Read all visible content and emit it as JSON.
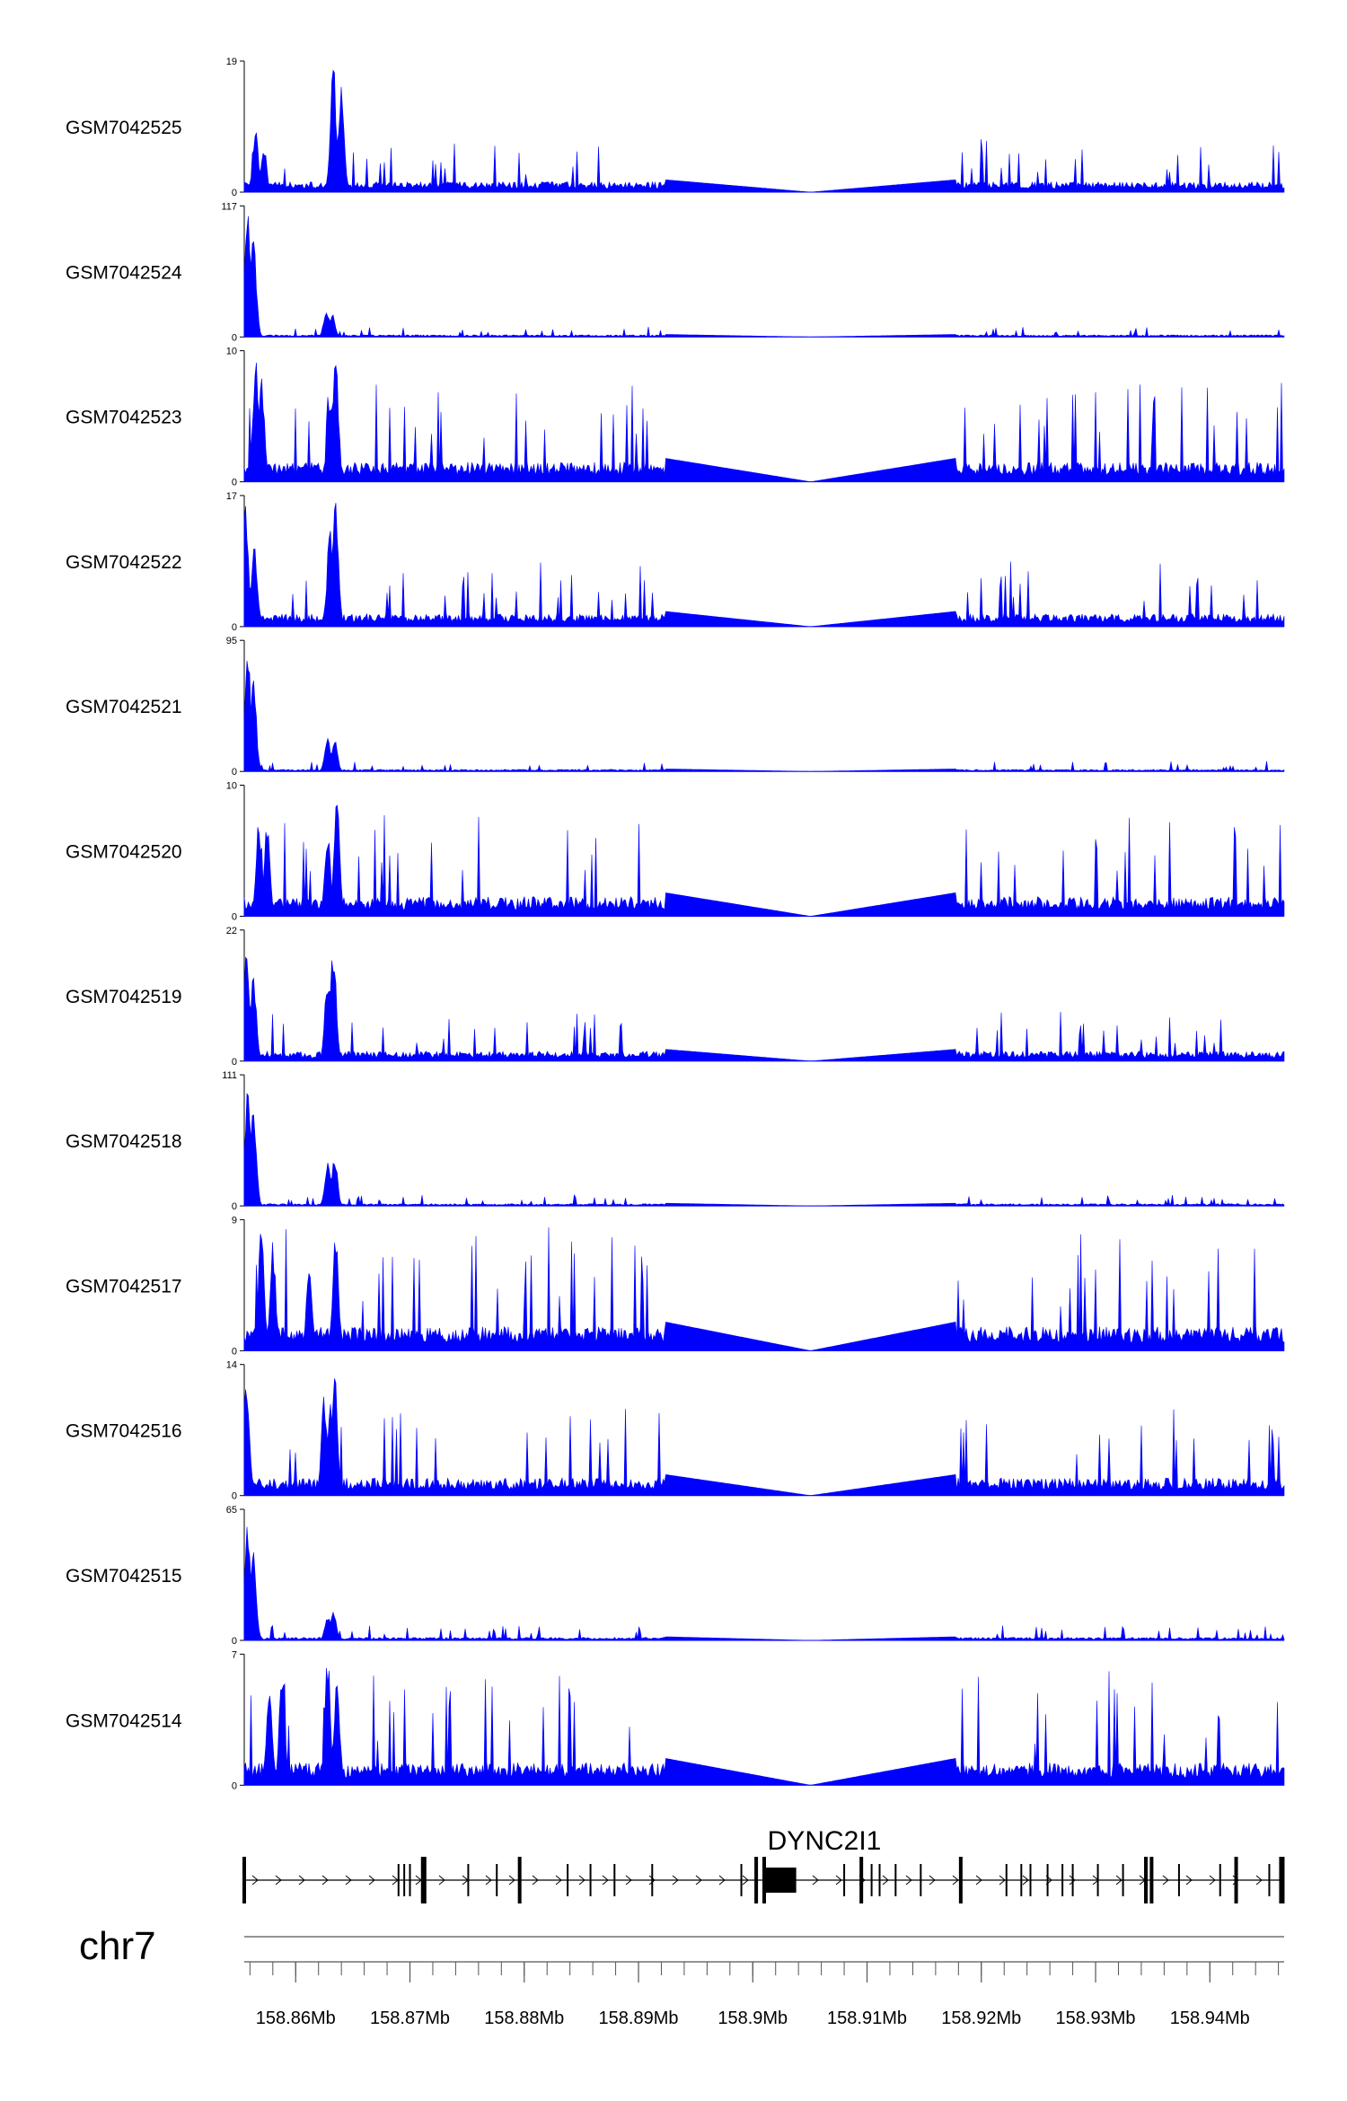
{
  "chart_data": {
    "type": "area",
    "chromosome": "chr7",
    "colors": {
      "signal": "#0000ff",
      "axis": "#000000",
      "gene": "#000000",
      "ideogram": "#555555"
    },
    "region": [
      158.8555,
      158.9465
    ],
    "gap": [
      158.8923,
      158.9178
    ],
    "tracks": [
      {
        "name": "GSM7042525",
        "max": "19",
        "min": "0",
        "ymax": 19,
        "peaks": [
          [
            158.8565,
            9
          ],
          [
            158.8572,
            7
          ],
          [
            158.8633,
            19
          ],
          [
            158.864,
            16
          ]
        ],
        "base": 2.0
      },
      {
        "name": "GSM7042524",
        "max": "117",
        "min": "0",
        "ymax": 117,
        "peaks": [
          [
            158.8558,
            111
          ],
          [
            158.8563,
            90
          ],
          [
            158.8627,
            25
          ],
          [
            158.8632,
            22
          ]
        ],
        "base": 2.5
      },
      {
        "name": "GSM7042523",
        "max": "10",
        "min": "0",
        "ymax": 10,
        "peaks": [
          [
            158.8565,
            9.5
          ],
          [
            158.857,
            8.5
          ],
          [
            158.863,
            7
          ],
          [
            158.8635,
            10
          ]
        ],
        "base": 2.0
      },
      {
        "name": "GSM7042522",
        "max": "17",
        "min": "0",
        "ymax": 17,
        "peaks": [
          [
            158.8556,
            16
          ],
          [
            158.8564,
            11
          ],
          [
            158.863,
            13
          ],
          [
            158.8635,
            17
          ]
        ],
        "base": 2.2
      },
      {
        "name": "GSM7042521",
        "max": "95",
        "min": "0",
        "ymax": 95,
        "peaks": [
          [
            158.8558,
            92
          ],
          [
            158.8563,
            70
          ],
          [
            158.8628,
            24
          ],
          [
            158.8634,
            25
          ]
        ],
        "base": 2.0
      },
      {
        "name": "GSM7042520",
        "max": "10",
        "min": "0",
        "ymax": 10,
        "peaks": [
          [
            158.8568,
            7
          ],
          [
            158.8575,
            7.5
          ],
          [
            158.8628,
            6.5
          ],
          [
            158.8636,
            10
          ]
        ],
        "base": 2.0
      },
      {
        "name": "GSM7042519",
        "max": "22",
        "min": "0",
        "ymax": 22,
        "peaks": [
          [
            158.8557,
            21
          ],
          [
            158.8563,
            15
          ],
          [
            158.8628,
            15
          ],
          [
            158.8633,
            20
          ]
        ],
        "base": 2.2
      },
      {
        "name": "GSM7042518",
        "max": "111",
        "min": "0",
        "ymax": 111,
        "peaks": [
          [
            158.8558,
            108
          ],
          [
            158.8563,
            85
          ],
          [
            158.8628,
            40
          ],
          [
            158.8634,
            44
          ]
        ],
        "base": 2.5
      },
      {
        "name": "GSM7042517",
        "max": "9",
        "min": "0",
        "ymax": 9,
        "peaks": [
          [
            158.857,
            9
          ],
          [
            158.858,
            7.5
          ],
          [
            158.8612,
            6.2
          ],
          [
            158.8635,
            8.5
          ]
        ],
        "base": 2.2
      },
      {
        "name": "GSM7042516",
        "max": "14",
        "min": "0",
        "ymax": 14,
        "peaks": [
          [
            158.8557,
            13
          ],
          [
            158.8625,
            11
          ],
          [
            158.863,
            10
          ],
          [
            158.8634,
            14
          ]
        ],
        "base": 2.5
      },
      {
        "name": "GSM7042515",
        "max": "65",
        "min": "0",
        "ymax": 65,
        "peaks": [
          [
            158.8558,
            62
          ],
          [
            158.8563,
            48
          ],
          [
            158.8628,
            12
          ],
          [
            158.8633,
            16
          ]
        ],
        "base": 2.0
      },
      {
        "name": "GSM7042514",
        "max": "7",
        "min": "0",
        "ymax": 7,
        "peaks": [
          [
            158.8577,
            5.5
          ],
          [
            158.8588,
            6.2
          ],
          [
            158.8628,
            7
          ],
          [
            158.8636,
            6
          ]
        ],
        "base": 1.6
      }
    ],
    "gene": {
      "name": "DYNC2I1",
      "start": 158.8555,
      "end": 158.9465,
      "exons": [
        {
          "pos": 158.8555,
          "tall": true
        },
        {
          "pos": 158.869
        },
        {
          "pos": 158.8695
        },
        {
          "pos": 158.87
        },
        {
          "pos": 158.8712,
          "tall": true,
          "wide": true
        },
        {
          "pos": 158.8751
        },
        {
          "pos": 158.8776
        },
        {
          "pos": 158.8796,
          "tall": true
        },
        {
          "pos": 158.8838
        },
        {
          "pos": 158.8858
        },
        {
          "pos": 158.8879
        },
        {
          "pos": 158.8912
        },
        {
          "pos": 158.899
        },
        {
          "pos": 158.9003,
          "tall": true
        },
        {
          "pos": 158.901,
          "tall": true,
          "cds_end": 158.9038
        },
        {
          "pos": 158.908
        },
        {
          "pos": 158.9095,
          "tall": true
        },
        {
          "pos": 158.9104
        },
        {
          "pos": 158.9111
        },
        {
          "pos": 158.9125
        },
        {
          "pos": 158.9147
        },
        {
          "pos": 158.9182,
          "tall": true
        },
        {
          "pos": 158.9222
        },
        {
          "pos": 158.9235
        },
        {
          "pos": 158.9243
        },
        {
          "pos": 158.9258
        },
        {
          "pos": 158.9271
        },
        {
          "pos": 158.928
        },
        {
          "pos": 158.9302
        },
        {
          "pos": 158.9324
        },
        {
          "pos": 158.9344,
          "tall": true
        },
        {
          "pos": 158.9349,
          "tall": true
        },
        {
          "pos": 158.9373
        },
        {
          "pos": 158.9409
        },
        {
          "pos": 158.9423,
          "tall": true
        },
        {
          "pos": 158.9452
        },
        {
          "pos": 158.9463,
          "tall": true,
          "wide": true
        }
      ]
    },
    "x_ticks": [
      {
        "value": 158.86,
        "label": "158.86Mb"
      },
      {
        "value": 158.87,
        "label": "158.87Mb"
      },
      {
        "value": 158.88,
        "label": "158.88Mb"
      },
      {
        "value": 158.89,
        "label": "158.89Mb"
      },
      {
        "value": 158.9,
        "label": "158.9Mb"
      },
      {
        "value": 158.91,
        "label": "158.91Mb"
      },
      {
        "value": 158.92,
        "label": "158.92Mb"
      },
      {
        "value": 158.93,
        "label": "158.93Mb"
      },
      {
        "value": 158.94,
        "label": "158.94Mb"
      }
    ],
    "minor_tick_step": 0.002
  }
}
